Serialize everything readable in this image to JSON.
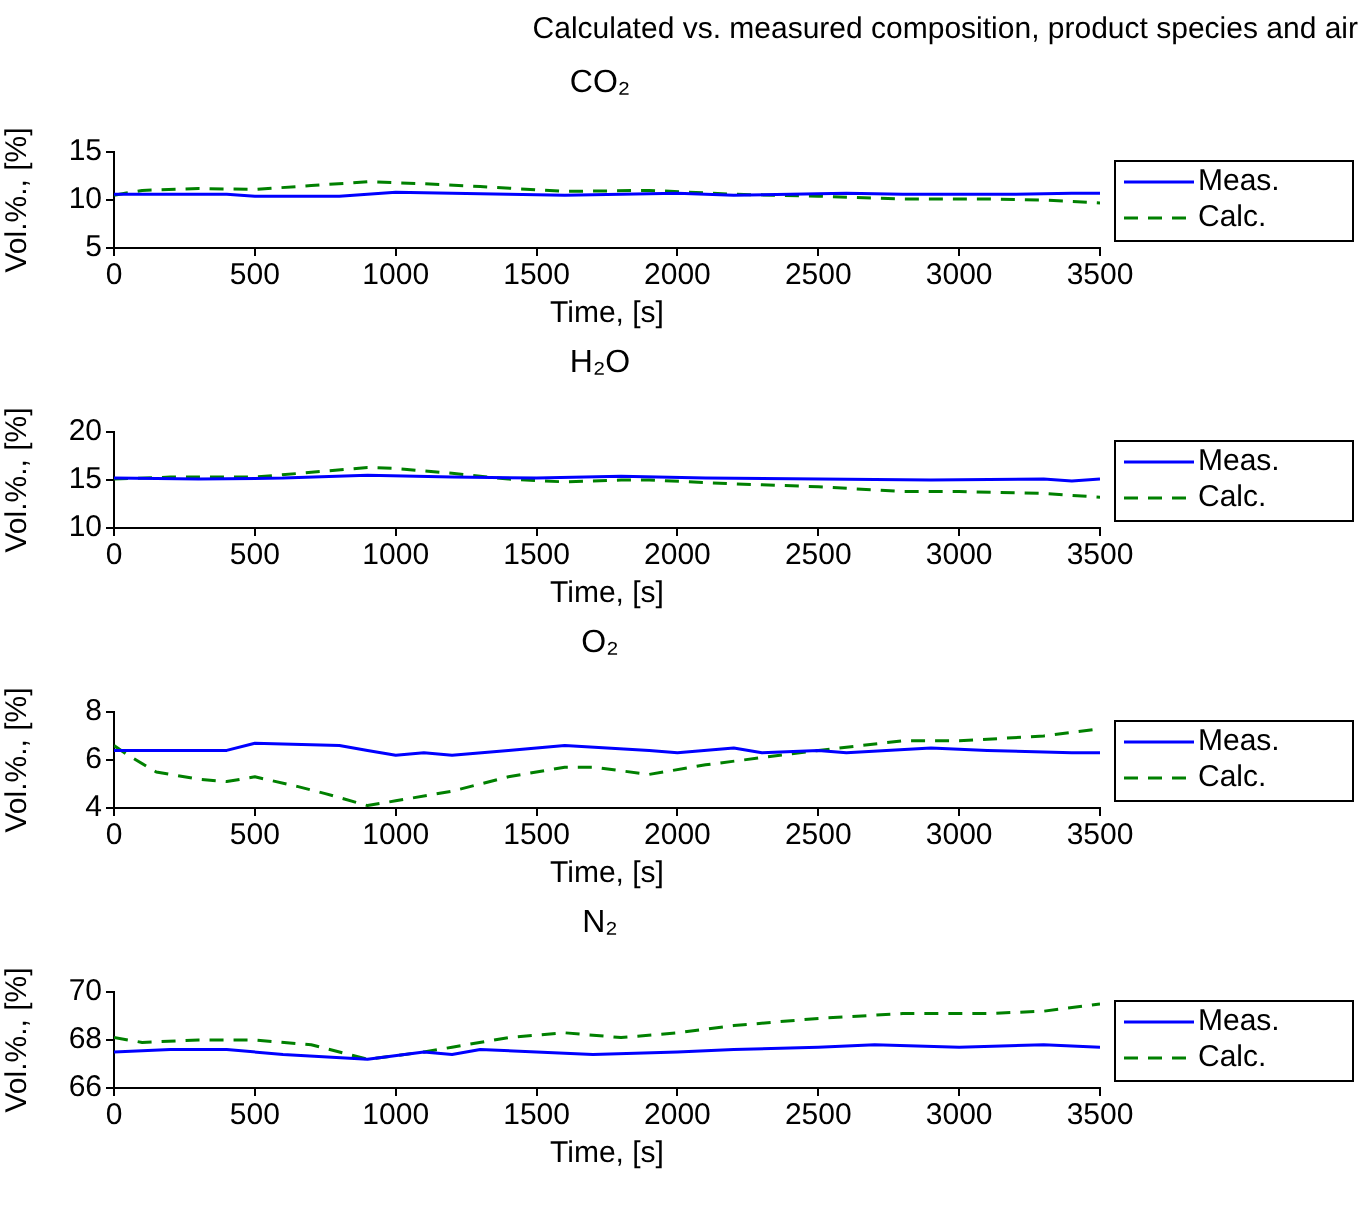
{
  "chart_data": [
    {
      "type": "line",
      "title": "Calculated vs. measured composition, product species and air",
      "subtitle": "CO₂",
      "xlabel": "Time, [s]",
      "ylabel": "Vol.%., [%]",
      "xlim": [
        0,
        3500
      ],
      "xticks": [
        0,
        500,
        1000,
        1500,
        2000,
        2500,
        3000,
        3500
      ],
      "ylim": [
        5,
        15
      ],
      "yticks": [
        5,
        10,
        15
      ],
      "grid": false,
      "legend": "right",
      "series": [
        {
          "name": "Meas.",
          "color": "#0000ff",
          "line_style": "solid",
          "x": [
            0,
            200,
            400,
            500,
            800,
            1000,
            1200,
            1400,
            1600,
            1800,
            2000,
            2200,
            2400,
            2600,
            2800,
            3000,
            3200,
            3400,
            3500
          ],
          "values": [
            10.6,
            10.6,
            10.6,
            10.4,
            10.4,
            10.8,
            10.7,
            10.6,
            10.5,
            10.6,
            10.7,
            10.5,
            10.6,
            10.7,
            10.6,
            10.6,
            10.6,
            10.7,
            10.7
          ]
        },
        {
          "name": "Calc.",
          "color": "#008000",
          "line_style": "dashed",
          "x": [
            0,
            100,
            300,
            500,
            700,
            900,
            1100,
            1300,
            1600,
            1900,
            2200,
            2500,
            2800,
            3100,
            3300,
            3500
          ],
          "values": [
            10.5,
            11,
            11.2,
            11.1,
            11.5,
            11.9,
            11.7,
            11.4,
            10.9,
            11,
            10.6,
            10.4,
            10.1,
            10.1,
            10,
            9.7
          ]
        }
      ]
    },
    {
      "type": "line",
      "title": "H₂O",
      "xlabel": "Time, [s]",
      "ylabel": "Vol.%., [%]",
      "xlim": [
        0,
        3500
      ],
      "xticks": [
        0,
        500,
        1000,
        1500,
        2000,
        2500,
        3000,
        3500
      ],
      "ylim": [
        10,
        20
      ],
      "yticks": [
        10,
        15,
        20
      ],
      "grid": false,
      "legend": "right",
      "series": [
        {
          "name": "Meas.",
          "color": "#0000ff",
          "line_style": "solid",
          "x": [
            0,
            300,
            600,
            900,
            1200,
            1500,
            1800,
            2100,
            2500,
            2900,
            3300,
            3400,
            3500
          ],
          "values": [
            15.2,
            15.1,
            15.2,
            15.5,
            15.3,
            15.2,
            15.4,
            15.2,
            15.1,
            15,
            15.1,
            14.9,
            15.1
          ]
        },
        {
          "name": "Calc.",
          "color": "#008000",
          "line_style": "dashed",
          "x": [
            0,
            200,
            500,
            700,
            900,
            1000,
            1200,
            1400,
            1600,
            1800,
            1900,
            2200,
            2500,
            2800,
            3000,
            3300,
            3500
          ],
          "values": [
            15.1,
            15.3,
            15.3,
            15.8,
            16.3,
            16.2,
            15.7,
            15.1,
            14.8,
            15,
            15,
            14.6,
            14.3,
            13.8,
            13.8,
            13.6,
            13.2
          ]
        }
      ]
    },
    {
      "type": "line",
      "title": "O₂",
      "xlabel": "Time, [s]",
      "ylabel": "Vol.%., [%]",
      "xlim": [
        0,
        3500
      ],
      "xticks": [
        0,
        500,
        1000,
        1500,
        2000,
        2500,
        3000,
        3500
      ],
      "ylim": [
        4,
        8
      ],
      "yticks": [
        4,
        6,
        8
      ],
      "grid": false,
      "legend": "right",
      "series": [
        {
          "name": "Meas.",
          "color": "#0000ff",
          "line_style": "solid",
          "x": [
            0,
            400,
            500,
            800,
            900,
            1000,
            1100,
            1200,
            1400,
            1600,
            1900,
            2000,
            2200,
            2300,
            2500,
            2600,
            2900,
            3100,
            3400,
            3500
          ],
          "values": [
            6.4,
            6.4,
            6.7,
            6.6,
            6.4,
            6.2,
            6.3,
            6.2,
            6.4,
            6.6,
            6.4,
            6.3,
            6.5,
            6.3,
            6.4,
            6.3,
            6.5,
            6.4,
            6.3,
            6.3
          ]
        },
        {
          "name": "Calc.",
          "color": "#008000",
          "line_style": "dashed",
          "x": [
            0,
            50,
            150,
            300,
            400,
            500,
            650,
            750,
            900,
            1000,
            1200,
            1400,
            1600,
            1700,
            1900,
            2100,
            2300,
            2500,
            2800,
            3000,
            3300,
            3500
          ],
          "values": [
            6.6,
            6.2,
            5.5,
            5.2,
            5.1,
            5.3,
            4.9,
            4.6,
            4.1,
            4.3,
            4.7,
            5.3,
            5.7,
            5.7,
            5.4,
            5.8,
            6.1,
            6.4,
            6.8,
            6.8,
            7,
            7.3
          ]
        }
      ]
    },
    {
      "type": "line",
      "title": "N₂",
      "xlabel": "Time, [s]",
      "ylabel": "Vol.%., [%]",
      "xlim": [
        0,
        3500
      ],
      "xticks": [
        0,
        500,
        1000,
        1500,
        2000,
        2500,
        3000,
        3500
      ],
      "ylim": [
        66,
        70
      ],
      "yticks": [
        66,
        68,
        70
      ],
      "grid": false,
      "legend": "right",
      "series": [
        {
          "name": "Meas.",
          "color": "#0000ff",
          "line_style": "solid",
          "x": [
            0,
            200,
            400,
            600,
            900,
            1100,
            1200,
            1300,
            1500,
            1700,
            2000,
            2200,
            2500,
            2700,
            3000,
            3300,
            3500
          ],
          "values": [
            67.5,
            67.6,
            67.6,
            67.4,
            67.2,
            67.5,
            67.4,
            67.6,
            67.5,
            67.4,
            67.5,
            67.6,
            67.7,
            67.8,
            67.7,
            67.8,
            67.7
          ]
        },
        {
          "name": "Calc.",
          "color": "#008000",
          "line_style": "dashed",
          "x": [
            0,
            100,
            300,
            500,
            700,
            900,
            1100,
            1200,
            1400,
            1600,
            1800,
            2000,
            2200,
            2500,
            2800,
            3100,
            3300,
            3500
          ],
          "values": [
            68.1,
            67.9,
            68,
            68,
            67.8,
            67.2,
            67.5,
            67.7,
            68.1,
            68.3,
            68.1,
            68.3,
            68.6,
            68.9,
            69.1,
            69.1,
            69.2,
            69.5
          ]
        }
      ]
    }
  ]
}
